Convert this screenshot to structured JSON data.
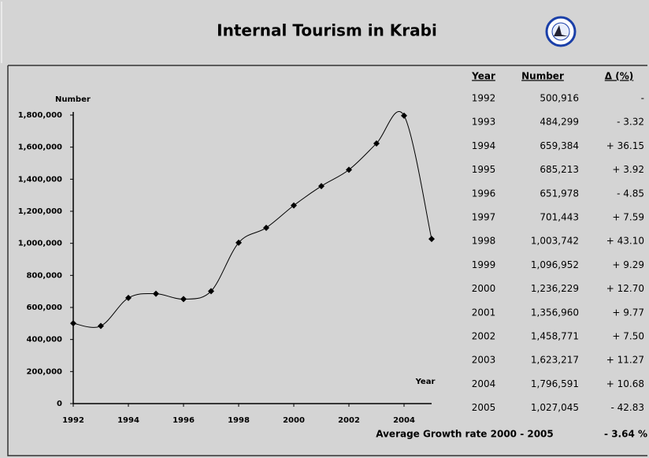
{
  "title": "Internal Tourism in Krabi",
  "chart_data": {
    "type": "line",
    "y_label": "Number",
    "x_label": "Year",
    "x": [
      1992,
      1993,
      1994,
      1995,
      1996,
      1997,
      1998,
      1999,
      2000,
      2001,
      2002,
      2003,
      2004,
      2005
    ],
    "values": [
      500916,
      484299,
      659384,
      685213,
      651978,
      701443,
      1003742,
      1096952,
      1236229,
      1356960,
      1458771,
      1623217,
      1796591,
      1027045
    ],
    "color": "#000000",
    "xlim": [
      1992,
      2005
    ],
    "xticks": [
      1992,
      1994,
      1996,
      1998,
      2000,
      2002,
      2004
    ],
    "ylim": [
      0,
      1800000
    ],
    "yticks": [
      0,
      {
        "value": 200000,
        "label": "200,000"
      },
      {
        "value": 400000,
        "label": "400,000"
      },
      {
        "value": 600000,
        "label": "600,000"
      },
      {
        "value": 800000,
        "label": "800,000"
      },
      {
        "value": 1000000,
        "label": "1,000,000"
      },
      {
        "value": 1200000,
        "label": "1,200,000"
      },
      {
        "value": 1400000,
        "label": "1,400,000"
      },
      {
        "value": 1600000,
        "label": "1,600,000"
      },
      {
        "value": 1800000,
        "label": "1,800,000"
      }
    ],
    "grid": false,
    "smooth": true
  },
  "table": {
    "header": [
      "Year",
      "Number",
      "Δ (%)"
    ],
    "rows": [
      [
        "1992",
        "500,916",
        "-"
      ],
      [
        "1993",
        "484,299",
        "- 3.32"
      ],
      [
        "1994",
        "659,384",
        "+ 36.15"
      ],
      [
        "1995",
        "685,213",
        "+ 3.92"
      ],
      [
        "1996",
        "651,978",
        "- 4.85"
      ],
      [
        "1997",
        "701,443",
        "+ 7.59"
      ],
      [
        "1998",
        "1,003,742",
        "+ 43.10"
      ],
      [
        "1999",
        "1,096,952",
        "+ 9.29"
      ],
      [
        "2000",
        "1,236,229",
        "+ 12.70"
      ],
      [
        "2001",
        "1,356,960",
        "+ 9.77"
      ],
      [
        "2002",
        "1,458,771",
        "+ 7.50"
      ],
      [
        "2003",
        "1,623,217",
        "+ 11.27"
      ],
      [
        "2004",
        "1,796,591",
        "+ 10.68"
      ],
      [
        "2005",
        "1,027,045",
        "- 42.83"
      ]
    ],
    "footer": [
      "Average Growth rate 2000 - 2005",
      "- 3.64 %"
    ]
  }
}
